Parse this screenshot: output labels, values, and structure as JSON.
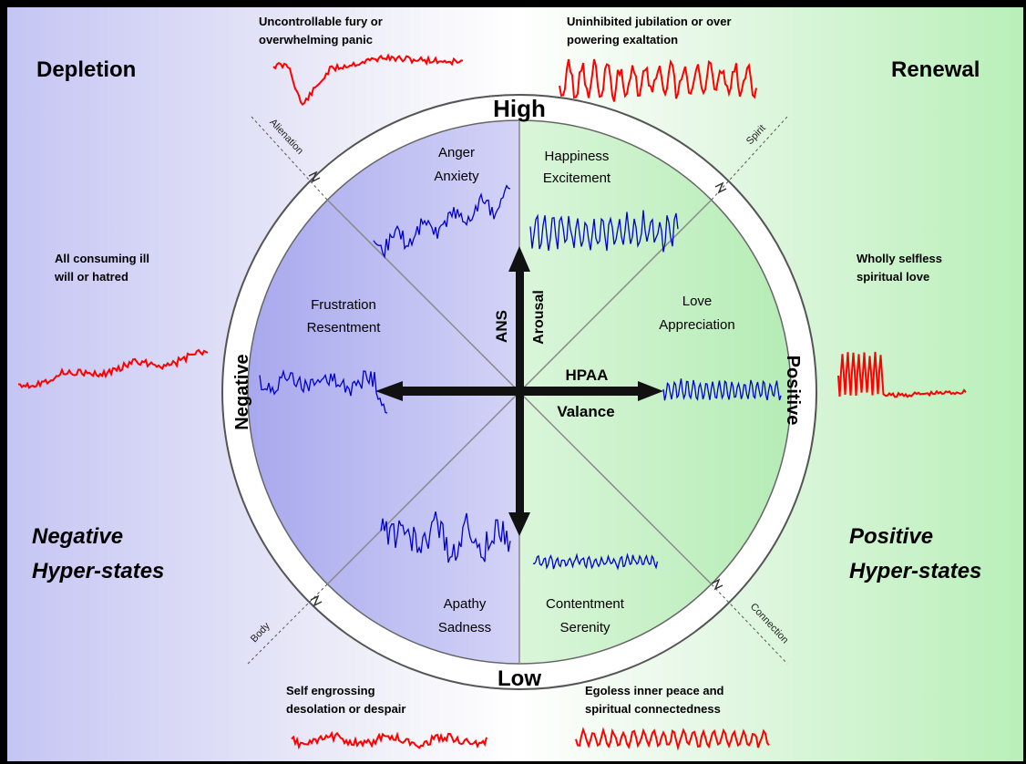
{
  "corners": {
    "depletion": "Depletion",
    "renewal": "Renewal",
    "negative_hyper_line1": "Negative",
    "negative_hyper_line2": "Hyper-states",
    "positive_hyper_line1": "Positive",
    "positive_hyper_line2": "Hyper-states"
  },
  "hyper_captions": {
    "top_left_1": "Uncontrollable fury or",
    "top_left_2": "overwhelming panic",
    "top_right_1": "Uninhibited jubilation or over",
    "top_right_2": "powering exaltation",
    "mid_left_1": "All consuming ill",
    "mid_left_2": "will or hatred",
    "mid_right_1": "Wholly selfless",
    "mid_right_2": "spiritual love",
    "bottom_left_1": "Self engrossing",
    "bottom_left_2": "desolation or despair",
    "bottom_right_1": "Egoless inner peace and",
    "bottom_right_2": "spiritual connectedness"
  },
  "ring": {
    "high": "High",
    "low": "Low",
    "negative": "Negative",
    "positive": "Positive"
  },
  "diagonals": {
    "alienation": "Alienation",
    "spirit": "Spirit",
    "body": "Body",
    "connection": "Connection"
  },
  "emotions": {
    "anger_1": "Anger",
    "anger_2": "Anxiety",
    "happy_1": "Happiness",
    "happy_2": "Excitement",
    "frus_1": "Frustration",
    "frus_2": "Resentment",
    "love_1": "Love",
    "love_2": "Appreciation",
    "apathy_1": "Apathy",
    "apathy_2": "Sadness",
    "content_1": "Contentment",
    "content_2": "Serenity"
  },
  "axes": {
    "ans": "ANS",
    "arousal": "Arousal",
    "hpaa": "HPAA",
    "valance": "Valance"
  },
  "colors": {
    "negative_tint": "#c8c8f5",
    "positive_tint": "#c8f0c8",
    "hyper_trace": "#ff0000",
    "state_trace": "#0000cc"
  }
}
